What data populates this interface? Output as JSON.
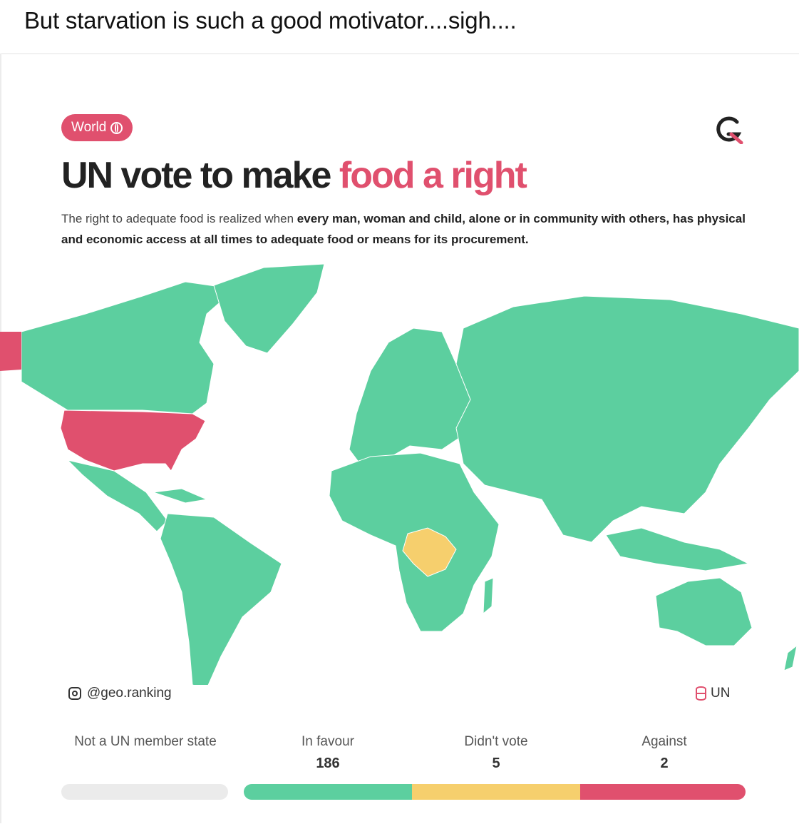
{
  "post": {
    "caption": "But starvation is such a good motivator....sigh...."
  },
  "card": {
    "tag": "World",
    "title_main": "UN vote to make ",
    "title_accent": "food a right",
    "description_plain": "The right to adequate food is realized when ",
    "description_bold": "every man, woman and child, alone or in community with others, has physical and economic access at all times to adequate food or means for its procurement.",
    "handle": "@geo.ranking",
    "source": "UN"
  },
  "legend": [
    {
      "label": "Not a UN member state",
      "count": "",
      "color": "#ebebeb"
    },
    {
      "label": "In favour",
      "count": "186",
      "color": "#5ccf9f"
    },
    {
      "label": "Didn't vote",
      "count": "5",
      "color": "#f6cf6d"
    },
    {
      "label": "Against",
      "count": "2",
      "color": "#e0506e"
    }
  ],
  "colors": {
    "accent": "#e0506e",
    "favour": "#5ccf9f",
    "didnt_vote": "#f6cf6d",
    "against": "#e0506e"
  },
  "icons": [
    "globe-icon",
    "logo-g-icon",
    "instagram-icon",
    "database-icon"
  ]
}
